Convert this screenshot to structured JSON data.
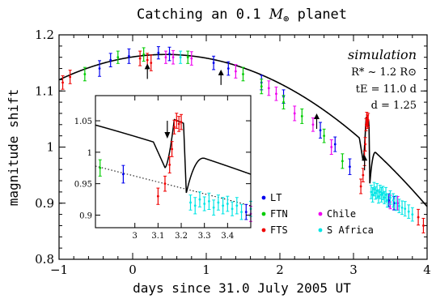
{
  "chart_data": [
    {
      "type": "scatter",
      "title_text": "Catching an 0.1 ",
      "title_symbol": "M",
      "title_sub": "⊕",
      "title_end": " planet",
      "xlabel": "days since 31.0 July 2005 UT",
      "ylabel": "magnitude shift",
      "xlim": [
        -1,
        4
      ],
      "ylim": [
        0.8,
        1.2
      ],
      "xticks": [
        -1,
        0,
        1,
        2,
        3,
        4
      ],
      "yticks": [
        0.8,
        0.9,
        1.0,
        1.1,
        1.2
      ],
      "xtick_labels": [
        "−1",
        "0",
        "1",
        "2",
        "3",
        "4"
      ],
      "ytick_labels": [
        "0.8",
        "0.9",
        "1",
        "1.1",
        "1.2"
      ],
      "annotation": {
        "simulation": "simulation",
        "rstar": "R* ~ 1.2 R⊙",
        "te": "tE = 11.0 d",
        "d": "d = 1.25"
      },
      "arrows_x": [
        0.2,
        1.2,
        2.5,
        3.15
      ],
      "model": {
        "peak_x": 0.45,
        "peak_y": 1.165,
        "curv": 0.0215,
        "anomaly": {
          "t_dip_start": 3.08,
          "t_dip": 3.13,
          "dip": -0.035,
          "t_peak": 3.17,
          "peak_y": 1.052,
          "t_drop": 3.21,
          "drop_to": 0.935
        }
      },
      "legend": [
        {
          "name": "LT",
          "color": "#0000ee"
        },
        {
          "name": "FTN",
          "color": "#00cc00"
        },
        {
          "name": "FTS",
          "color": "#ee0000"
        },
        {
          "name": "Chile",
          "color": "#ee00ee"
        },
        {
          "name": "S Africa",
          "color": "#00e5e5"
        }
      ],
      "series": [
        {
          "name": "LT",
          "color": "#0000ee",
          "points": [
            [
              -0.45,
              1.14
            ],
            [
              -0.3,
              1.155
            ],
            [
              -0.05,
              1.162
            ],
            [
              0.35,
              1.168
            ],
            [
              0.5,
              1.166
            ],
            [
              1.1,
              1.15
            ],
            [
              1.3,
              1.14
            ],
            [
              1.75,
              1.115
            ],
            [
              2.05,
              1.09
            ],
            [
              2.55,
              1.03
            ],
            [
              2.75,
              1.005
            ],
            [
              2.95,
              0.965
            ],
            [
              3.48,
              0.905
            ],
            [
              3.55,
              0.9
            ]
          ],
          "errors": [
            0.014,
            0.012,
            0.013,
            0.011,
            0.012,
            0.012,
            0.012,
            0.013,
            0.012,
            0.014,
            0.013,
            0.014,
            0.012,
            0.012
          ]
        },
        {
          "name": "FTN",
          "color": "#00cc00",
          "points": [
            [
              -0.65,
              1.13
            ],
            [
              -0.2,
              1.16
            ],
            [
              0.15,
              1.165
            ],
            [
              0.75,
              1.16
            ],
            [
              1.5,
              1.13
            ],
            [
              1.75,
              1.108
            ],
            [
              2.05,
              1.08
            ],
            [
              2.3,
              1.055
            ],
            [
              2.6,
              1.02
            ],
            [
              2.85,
              0.975
            ]
          ],
          "errors": [
            0.012,
            0.011,
            0.012,
            0.011,
            0.012,
            0.013,
            0.012,
            0.013,
            0.012,
            0.013
          ]
        },
        {
          "name": "FTS",
          "color": "#ee0000",
          "points": [
            [
              -0.95,
              1.115
            ],
            [
              -0.85,
              1.125
            ],
            [
              0.1,
              1.158
            ],
            [
              0.2,
              1.155
            ],
            [
              0.25,
              1.15
            ],
            [
              3.1,
              0.93
            ],
            [
              3.13,
              0.95
            ],
            [
              3.15,
              0.98
            ],
            [
              3.16,
              1.005
            ],
            [
              3.17,
              1.04
            ],
            [
              3.18,
              1.05
            ],
            [
              3.19,
              1.045
            ],
            [
              3.2,
              1.048
            ],
            [
              3.88,
              0.875
            ],
            [
              3.95,
              0.86
            ]
          ],
          "errors": [
            0.012,
            0.012,
            0.013,
            0.012,
            0.014,
            0.013,
            0.012,
            0.013,
            0.012,
            0.011,
            0.012,
            0.012,
            0.012,
            0.014,
            0.013
          ]
        },
        {
          "name": "Chile",
          "color": "#ee00ee",
          "points": [
            [
              0.45,
              1.16
            ],
            [
              0.55,
              1.16
            ],
            [
              0.8,
              1.158
            ],
            [
              1.4,
              1.135
            ],
            [
              1.85,
              1.105
            ],
            [
              1.95,
              1.095
            ],
            [
              2.2,
              1.06
            ],
            [
              2.45,
              1.04
            ],
            [
              2.7,
              1.0
            ],
            [
              3.5,
              0.902
            ],
            [
              3.6,
              0.9
            ]
          ],
          "errors": [
            0.011,
            0.012,
            0.012,
            0.012,
            0.013,
            0.012,
            0.013,
            0.012,
            0.013,
            0.012,
            0.012
          ]
        },
        {
          "name": "S Africa",
          "color": "#00e5e5",
          "points": [
            [
              0.65,
              1.16
            ],
            [
              3.24,
              0.92
            ],
            [
              3.26,
              0.915
            ],
            [
              3.28,
              0.925
            ],
            [
              3.3,
              0.918
            ],
            [
              3.32,
              0.922
            ],
            [
              3.34,
              0.912
            ],
            [
              3.36,
              0.92
            ],
            [
              3.38,
              0.915
            ],
            [
              3.4,
              0.918
            ],
            [
              3.42,
              0.91
            ],
            [
              3.44,
              0.915
            ],
            [
              3.46,
              0.905
            ],
            [
              3.5,
              0.91
            ],
            [
              3.54,
              0.905
            ],
            [
              3.58,
              0.9
            ],
            [
              3.62,
              0.895
            ],
            [
              3.66,
              0.892
            ],
            [
              3.7,
              0.89
            ],
            [
              3.75,
              0.885
            ],
            [
              3.8,
              0.88
            ]
          ],
          "errors": [
            0.011,
            0.012,
            0.013,
            0.012,
            0.011,
            0.013,
            0.012,
            0.012,
            0.013,
            0.012,
            0.011,
            0.013,
            0.012,
            0.012,
            0.012,
            0.013,
            0.012,
            0.012,
            0.013,
            0.012,
            0.012
          ]
        }
      ]
    },
    {
      "type": "scatter",
      "role": "inset",
      "xlim": [
        2.83,
        3.5
      ],
      "ylim": [
        0.88,
        1.09
      ],
      "xticks": [
        3,
        3.1,
        3.2,
        3.3,
        3.4
      ],
      "yticks": [
        0.9,
        0.95,
        1.0,
        1.05
      ],
      "xtick_labels": [
        "3",
        "3.1",
        "3.2",
        "3.3",
        "3.4"
      ],
      "ytick_labels": [
        "0.9",
        "0.95",
        "1",
        "1.05"
      ],
      "arrow_x": 3.14,
      "baseline_dotted": [
        [
          2.83,
          0.978
        ],
        [
          3.5,
          0.915
        ]
      ]
    }
  ]
}
